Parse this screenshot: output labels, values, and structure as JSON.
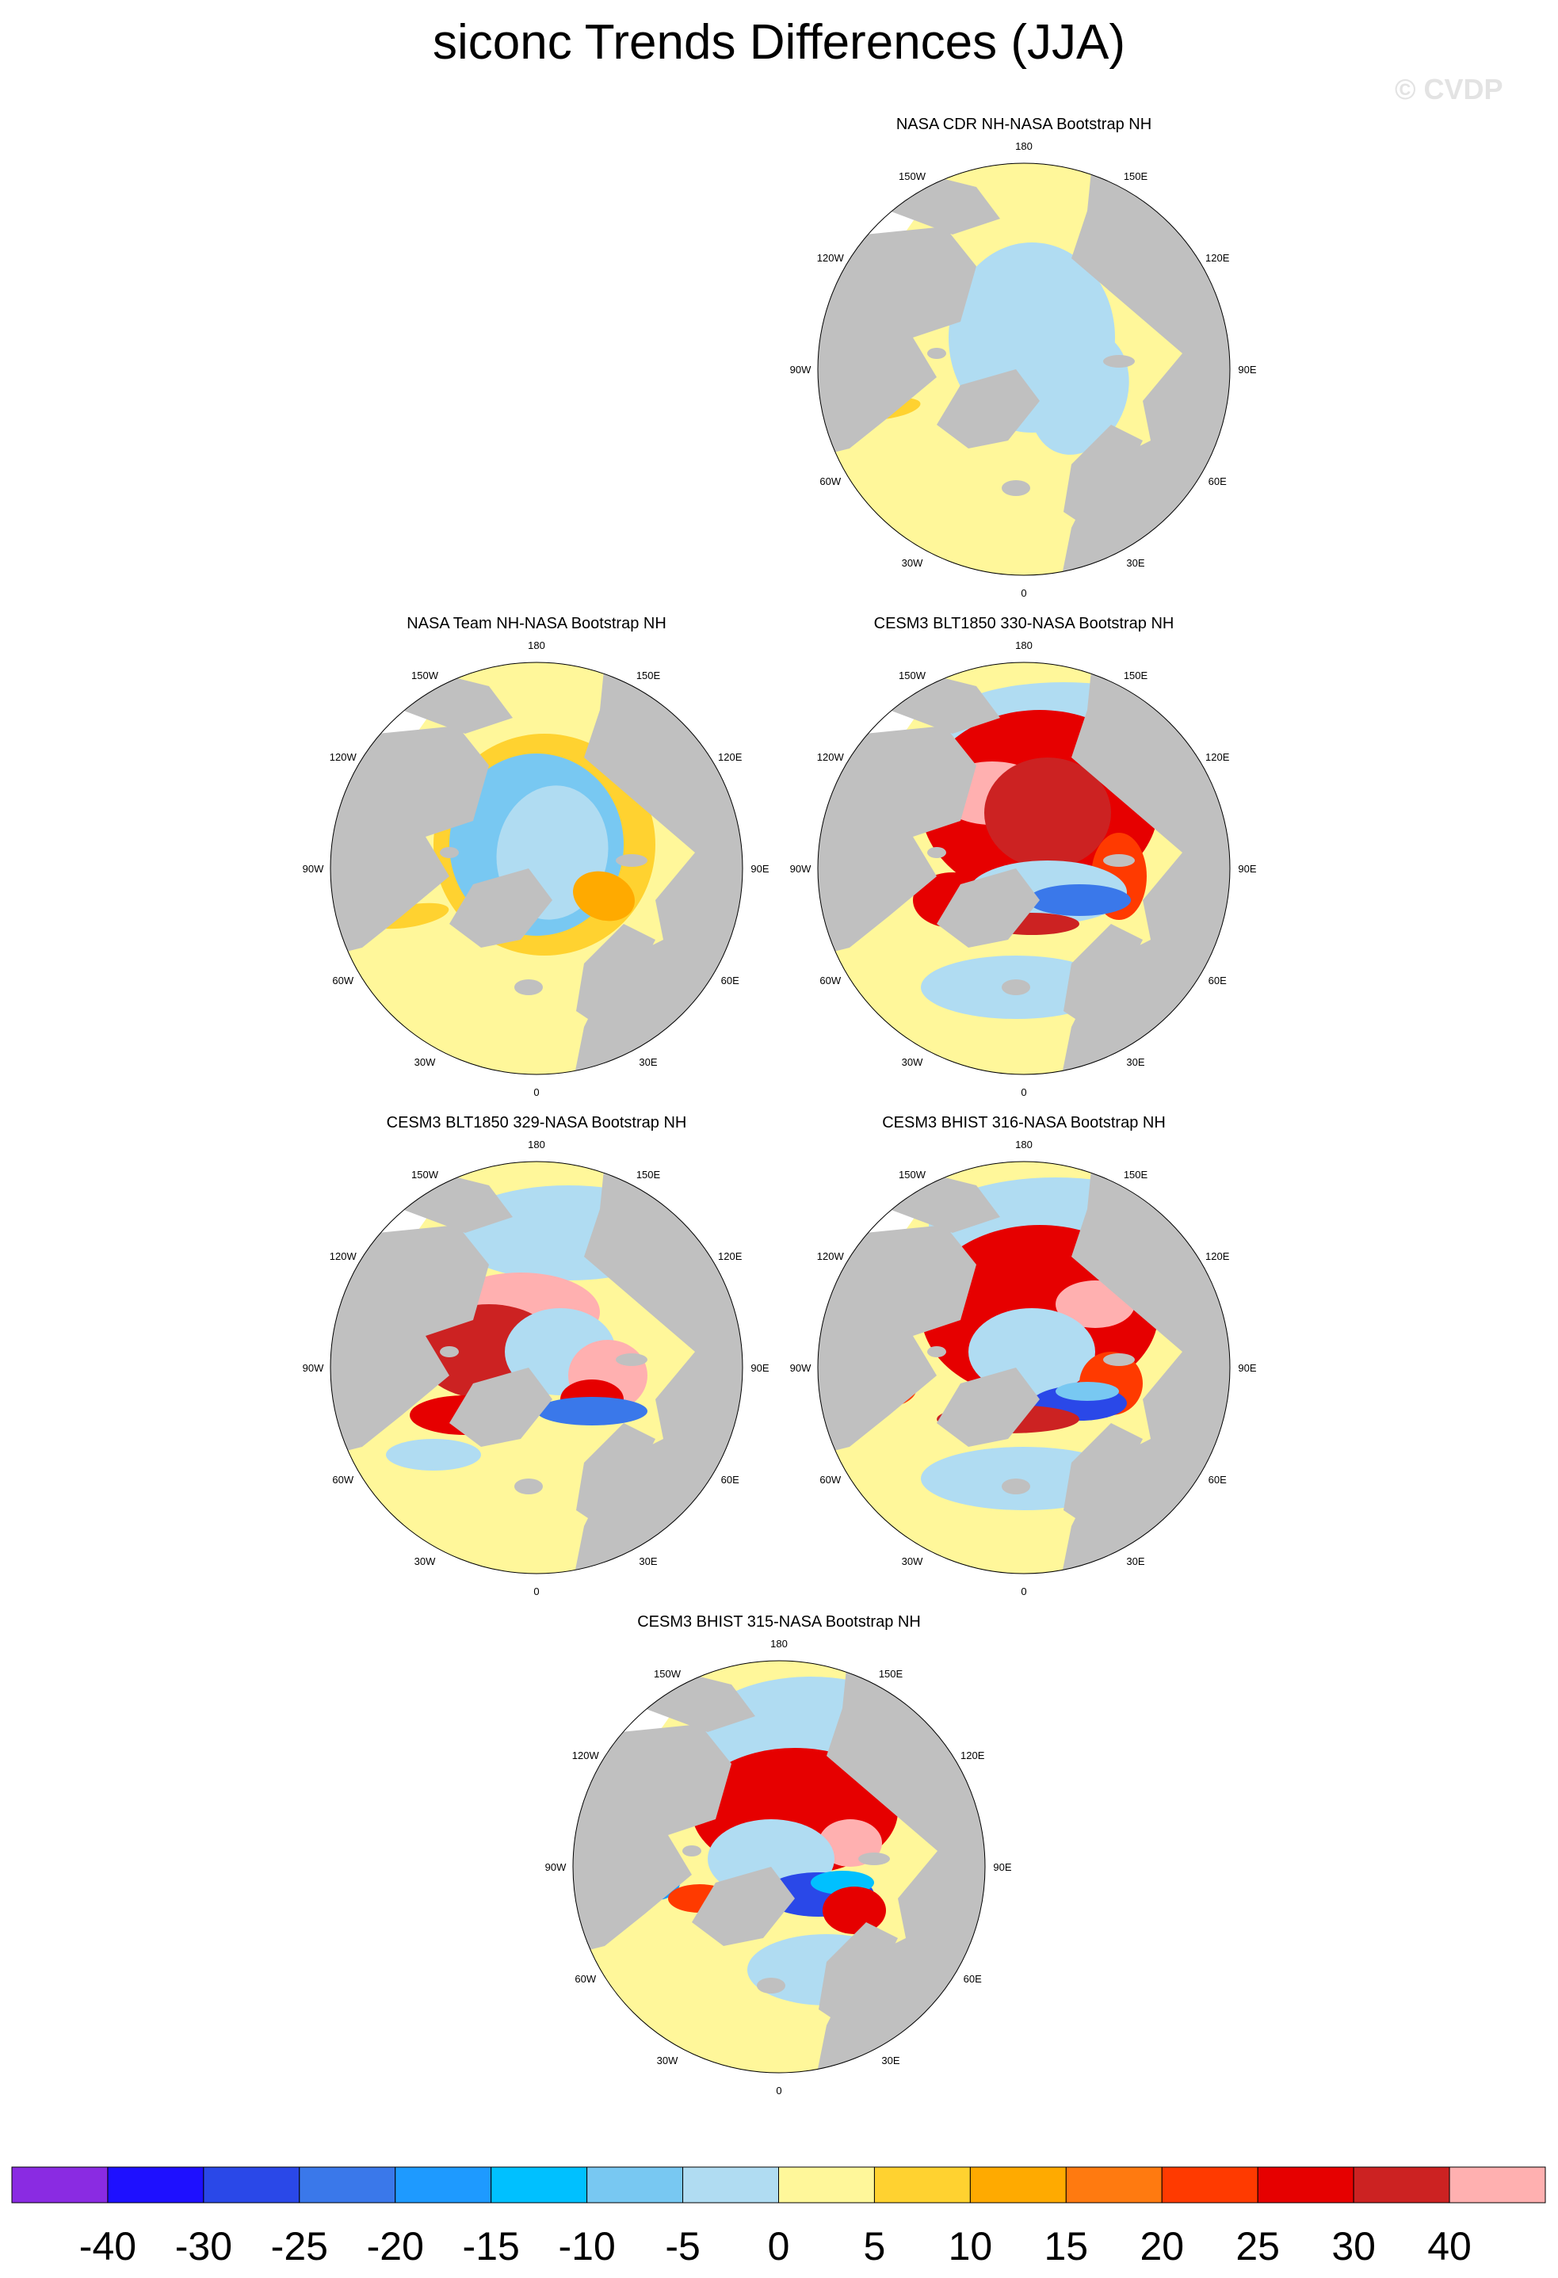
{
  "title": "siconc Trends Differences (JJA)",
  "watermark": "© CVDP",
  "colors": {
    "land": "#c0c0c0",
    "ocean": "#ffffff",
    "levels": [
      "#8a2be2",
      "#1e10ff",
      "#2a48e8",
      "#3a78ea",
      "#1e9aff",
      "#00c0ff",
      "#78c8f2",
      "#b0dcf2",
      "#fff79a",
      "#ffd230",
      "#ffaa00",
      "#ff7a10",
      "#ff3a00",
      "#e60000",
      "#cc2222",
      "#ffb0b0"
    ]
  },
  "colorbar": {
    "labels": [
      "-40",
      "-30",
      "-25",
      "-20",
      "-15",
      "-10",
      "-5",
      "0",
      "5",
      "10",
      "15",
      "20",
      "25",
      "30",
      "40"
    ]
  },
  "longitude_labels": [
    "180",
    "150E",
    "120E",
    "90E",
    "60E",
    "30E",
    "0",
    "30W",
    "60W",
    "90W",
    "120W",
    "150W"
  ],
  "panels": [
    {
      "title": "NASA CDR NH-NASA Bootstrap NH",
      "pattern": "cdr"
    },
    {
      "title": "NASA Team NH-NASA Bootstrap NH",
      "pattern": "team"
    },
    {
      "title": "CESM3 BLT1850 330-NASA Bootstrap NH",
      "pattern": "blt330"
    },
    {
      "title": "CESM3 BLT1850 329-NASA Bootstrap NH",
      "pattern": "blt329"
    },
    {
      "title": "CESM3 BHIST 316-NASA Bootstrap NH",
      "pattern": "bhist316"
    },
    {
      "title": "CESM3 BHIST 315-NASA Bootstrap NH",
      "pattern": "bhist315"
    }
  ]
}
